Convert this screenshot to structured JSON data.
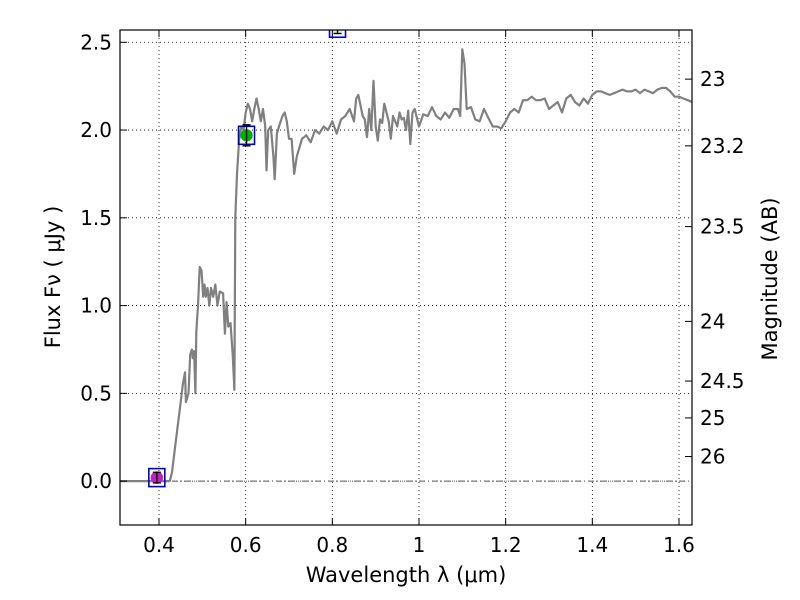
{
  "chart_data": {
    "type": "line",
    "xlabel": "Wavelength  λ (μm)",
    "ylabel": "Flux  Fν  ( μJy )",
    "ylabel_right": "Magnitude (AB)",
    "xlim": [
      0.31,
      1.63
    ],
    "ylim": [
      -0.25,
      2.57
    ],
    "grid": true,
    "x_ticks": [
      {
        "value": 0.4,
        "label": "0.4"
      },
      {
        "value": 0.6,
        "label": "0.6"
      },
      {
        "value": 0.8,
        "label": "0.8"
      },
      {
        "value": 1.0,
        "label": "1"
      },
      {
        "value": 1.2,
        "label": "1.2"
      },
      {
        "value": 1.4,
        "label": "1.4"
      },
      {
        "value": 1.6,
        "label": "1.6"
      }
    ],
    "y_ticks": [
      {
        "value": 0.0,
        "label": "0.0"
      },
      {
        "value": 0.5,
        "label": "0.5"
      },
      {
        "value": 1.0,
        "label": "1.0"
      },
      {
        "value": 1.5,
        "label": "1.5"
      },
      {
        "value": 2.0,
        "label": "2.0"
      },
      {
        "value": 2.5,
        "label": "2.5"
      }
    ],
    "right_ticks": [
      {
        "flux": 2.29,
        "label": "23"
      },
      {
        "flux": 1.91,
        "label": "23.2"
      },
      {
        "flux": 1.45,
        "label": "23.5"
      },
      {
        "flux": 0.91,
        "label": "24"
      },
      {
        "flux": 0.57,
        "label": "24.5"
      },
      {
        "flux": 0.36,
        "label": "25"
      },
      {
        "flux": 0.14,
        "label": "26"
      }
    ],
    "zero_line": 0.0,
    "spectrum": {
      "color": "#808080",
      "points": [
        [
          0.31,
          0.0
        ],
        [
          0.34,
          0.0
        ],
        [
          0.37,
          0.0
        ],
        [
          0.4,
          0.0
        ],
        [
          0.425,
          0.0
        ],
        [
          0.43,
          0.05
        ],
        [
          0.44,
          0.25
        ],
        [
          0.45,
          0.45
        ],
        [
          0.455,
          0.55
        ],
        [
          0.46,
          0.62
        ],
        [
          0.462,
          0.45
        ],
        [
          0.468,
          0.5
        ],
        [
          0.472,
          0.72
        ],
        [
          0.476,
          0.75
        ],
        [
          0.478,
          0.7
        ],
        [
          0.481,
          0.74
        ],
        [
          0.484,
          0.5
        ],
        [
          0.486,
          0.85
        ],
        [
          0.49,
          1.0
        ],
        [
          0.494,
          1.22
        ],
        [
          0.498,
          1.2
        ],
        [
          0.502,
          1.05
        ],
        [
          0.505,
          1.12
        ],
        [
          0.508,
          1.05
        ],
        [
          0.512,
          1.1
        ],
        [
          0.516,
          1.0
        ],
        [
          0.52,
          1.1
        ],
        [
          0.525,
          1.05
        ],
        [
          0.53,
          1.12
        ],
        [
          0.535,
          1.0
        ],
        [
          0.54,
          1.08
        ],
        [
          0.548,
          1.07
        ],
        [
          0.552,
          0.84
        ],
        [
          0.556,
          1.02
        ],
        [
          0.56,
          0.88
        ],
        [
          0.565,
          0.9
        ],
        [
          0.57,
          0.72
        ],
        [
          0.574,
          0.52
        ],
        [
          0.576,
          1.5
        ],
        [
          0.58,
          1.75
        ],
        [
          0.585,
          1.95
        ],
        [
          0.59,
          2.02
        ],
        [
          0.595,
          2.0
        ],
        [
          0.6,
          2.1
        ],
        [
          0.605,
          2.15
        ],
        [
          0.61,
          2.12
        ],
        [
          0.615,
          2.05
        ],
        [
          0.62,
          2.12
        ],
        [
          0.625,
          2.18
        ],
        [
          0.63,
          2.12
        ],
        [
          0.635,
          2.05
        ],
        [
          0.64,
          2.12
        ],
        [
          0.645,
          2.02
        ],
        [
          0.648,
          1.77
        ],
        [
          0.652,
          2.0
        ],
        [
          0.658,
          2.02
        ],
        [
          0.664,
          1.85
        ],
        [
          0.667,
          1.72
        ],
        [
          0.672,
          1.98
        ],
        [
          0.678,
          2.03
        ],
        [
          0.685,
          2.08
        ],
        [
          0.69,
          2.1
        ],
        [
          0.695,
          2.05
        ],
        [
          0.7,
          1.95
        ],
        [
          0.706,
          1.95
        ],
        [
          0.712,
          1.75
        ],
        [
          0.718,
          1.85
        ],
        [
          0.724,
          1.9
        ],
        [
          0.73,
          1.95
        ],
        [
          0.74,
          1.97
        ],
        [
          0.75,
          1.93
        ],
        [
          0.76,
          2.0
        ],
        [
          0.77,
          1.98
        ],
        [
          0.78,
          2.02
        ],
        [
          0.79,
          2.0
        ],
        [
          0.8,
          2.05
        ],
        [
          0.81,
          1.98
        ],
        [
          0.82,
          2.06
        ],
        [
          0.83,
          2.08
        ],
        [
          0.84,
          2.12
        ],
        [
          0.85,
          2.05
        ],
        [
          0.855,
          2.18
        ],
        [
          0.86,
          2.2
        ],
        [
          0.87,
          2.08
        ],
        [
          0.875,
          2.06
        ],
        [
          0.88,
          1.96
        ],
        [
          0.885,
          2.12
        ],
        [
          0.89,
          2.0
        ],
        [
          0.895,
          2.28
        ],
        [
          0.9,
          2.02
        ],
        [
          0.905,
          1.94
        ],
        [
          0.91,
          2.06
        ],
        [
          0.915,
          2.04
        ],
        [
          0.92,
          2.15
        ],
        [
          0.93,
          2.05
        ],
        [
          0.935,
          1.95
        ],
        [
          0.94,
          2.08
        ],
        [
          0.95,
          2.02
        ],
        [
          0.955,
          2.1
        ],
        [
          0.96,
          2.06
        ],
        [
          0.965,
          2.07
        ],
        [
          0.97,
          2.0
        ],
        [
          0.975,
          2.11
        ],
        [
          0.98,
          1.92
        ],
        [
          0.985,
          2.1
        ],
        [
          0.99,
          2.12
        ],
        [
          1.0,
          2.02
        ],
        [
          1.01,
          2.09
        ],
        [
          1.02,
          2.08
        ],
        [
          1.03,
          2.13
        ],
        [
          1.04,
          2.08
        ],
        [
          1.05,
          2.06
        ],
        [
          1.06,
          2.1
        ],
        [
          1.07,
          2.07
        ],
        [
          1.08,
          2.12
        ],
        [
          1.09,
          2.12
        ],
        [
          1.095,
          2.08
        ],
        [
          1.1,
          2.46
        ],
        [
          1.105,
          2.38
        ],
        [
          1.11,
          2.12
        ],
        [
          1.12,
          2.13
        ],
        [
          1.13,
          2.06
        ],
        [
          1.14,
          2.05
        ],
        [
          1.15,
          2.12
        ],
        [
          1.16,
          2.07
        ],
        [
          1.17,
          2.02
        ],
        [
          1.18,
          2.02
        ],
        [
          1.19,
          2.01
        ],
        [
          1.2,
          2.05
        ],
        [
          1.21,
          2.1
        ],
        [
          1.22,
          2.12
        ],
        [
          1.23,
          2.1
        ],
        [
          1.24,
          2.17
        ],
        [
          1.25,
          2.17
        ],
        [
          1.26,
          2.19
        ],
        [
          1.27,
          2.17
        ],
        [
          1.28,
          2.17
        ],
        [
          1.29,
          2.18
        ],
        [
          1.3,
          2.12
        ],
        [
          1.31,
          2.14
        ],
        [
          1.32,
          2.16
        ],
        [
          1.33,
          2.1
        ],
        [
          1.34,
          2.18
        ],
        [
          1.35,
          2.2
        ],
        [
          1.36,
          2.16
        ],
        [
          1.37,
          2.14
        ],
        [
          1.38,
          2.18
        ],
        [
          1.39,
          2.15
        ],
        [
          1.4,
          2.2
        ],
        [
          1.41,
          2.22
        ],
        [
          1.42,
          2.22
        ],
        [
          1.43,
          2.21
        ],
        [
          1.44,
          2.2
        ],
        [
          1.45,
          2.21
        ],
        [
          1.46,
          2.22
        ],
        [
          1.47,
          2.23
        ],
        [
          1.48,
          2.22
        ],
        [
          1.49,
          2.22
        ],
        [
          1.5,
          2.23
        ],
        [
          1.51,
          2.21
        ],
        [
          1.52,
          2.23
        ],
        [
          1.53,
          2.22
        ],
        [
          1.54,
          2.21
        ],
        [
          1.55,
          2.23
        ],
        [
          1.56,
          2.24
        ],
        [
          1.57,
          2.24
        ],
        [
          1.58,
          2.22
        ],
        [
          1.59,
          2.19
        ],
        [
          1.6,
          2.19
        ],
        [
          1.61,
          2.18
        ],
        [
          1.62,
          2.17
        ],
        [
          1.63,
          2.16
        ]
      ]
    },
    "photometry": [
      {
        "x": 0.395,
        "y": 0.02,
        "err": 0.03,
        "fill": "#c020c0",
        "edge": "#0000cc"
      },
      {
        "x": 0.602,
        "y": 1.97,
        "err": 0.06,
        "fill": "#00b000",
        "edge": "#0000cc"
      },
      {
        "x": 0.812,
        "y": 2.58,
        "err": 0.03,
        "fill": "#d8ecd8",
        "edge": "#0000cc"
      }
    ]
  }
}
